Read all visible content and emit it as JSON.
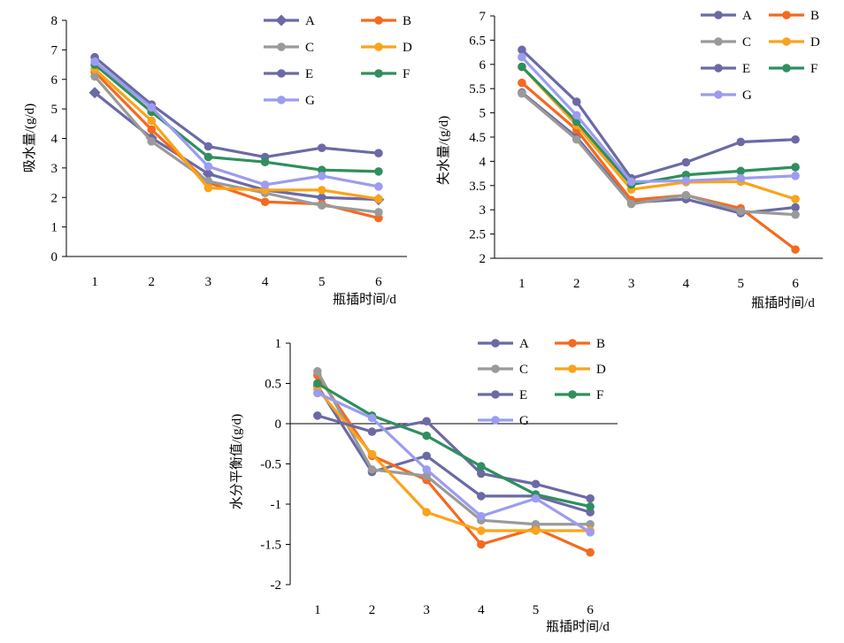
{
  "chart_data": [
    {
      "type": "line",
      "title": "",
      "xlabel": "瓶插时间/d",
      "ylabel": "吸水量/(g/d)",
      "x": [
        1,
        2,
        3,
        4,
        5,
        6
      ],
      "ylim": [
        0,
        8
      ],
      "yticks": [
        "0",
        "1",
        "2",
        "3",
        "4",
        "5",
        "6",
        "7",
        "8"
      ],
      "grid": false,
      "legend": "top-right",
      "series": [
        {
          "name": "A",
          "color": "#6b6aa5",
          "marker": "diamond",
          "values": [
            5.55,
            4.02,
            2.8,
            2.25,
            2.0,
            1.93
          ]
        },
        {
          "name": "B",
          "color": "#f46a1f",
          "marker": "circle",
          "values": [
            6.25,
            4.3,
            2.5,
            1.85,
            1.78,
            1.3
          ]
        },
        {
          "name": "C",
          "color": "#9a9a9a",
          "marker": "circle",
          "values": [
            6.1,
            3.9,
            2.55,
            2.15,
            1.73,
            1.5
          ]
        },
        {
          "name": "D",
          "color": "#fba31a",
          "marker": "circle",
          "values": [
            6.35,
            4.6,
            2.32,
            2.25,
            2.25,
            1.95
          ]
        },
        {
          "name": "E",
          "color": "#6b6aa5",
          "marker": "circle",
          "values": [
            6.75,
            5.15,
            3.73,
            3.37,
            3.68,
            3.5
          ]
        },
        {
          "name": "F",
          "color": "#2f8f5e",
          "marker": "circle",
          "values": [
            6.5,
            4.9,
            3.37,
            3.2,
            2.93,
            2.88
          ]
        },
        {
          "name": "G",
          "color": "#9c9cf0",
          "marker": "circle",
          "values": [
            6.6,
            5.05,
            3.05,
            2.43,
            2.73,
            2.37
          ]
        }
      ]
    },
    {
      "type": "line",
      "title": "",
      "xlabel": "瓶插时间/d",
      "ylabel": "失水量/(g/d)",
      "x": [
        1,
        2,
        3,
        4,
        5,
        6
      ],
      "ylim": [
        2,
        7
      ],
      "yticks": [
        "2",
        "2.5",
        "3",
        "3.5",
        "4",
        "4.5",
        "5",
        "5.5",
        "6",
        "6.5",
        "7"
      ],
      "grid": false,
      "legend": "top-right",
      "series": [
        {
          "name": "A",
          "color": "#6b6aa5",
          "marker": "circle",
          "values": [
            5.42,
            4.5,
            3.15,
            3.22,
            2.93,
            3.05
          ]
        },
        {
          "name": "B",
          "color": "#f46a1f",
          "marker": "circle",
          "values": [
            5.62,
            4.65,
            3.2,
            3.3,
            3.03,
            2.18
          ]
        },
        {
          "name": "C",
          "color": "#9a9a9a",
          "marker": "circle",
          "values": [
            5.4,
            4.45,
            3.12,
            3.3,
            2.97,
            2.9
          ]
        },
        {
          "name": "D",
          "color": "#fba31a",
          "marker": "circle",
          "values": [
            5.95,
            4.75,
            3.42,
            3.57,
            3.58,
            3.22
          ]
        },
        {
          "name": "E",
          "color": "#6b6aa5",
          "marker": "circle",
          "values": [
            6.3,
            5.23,
            3.65,
            3.98,
            4.4,
            4.45
          ]
        },
        {
          "name": "F",
          "color": "#2f8f5e",
          "marker": "circle",
          "values": [
            5.95,
            4.82,
            3.52,
            3.72,
            3.8,
            3.88
          ]
        },
        {
          "name": "G",
          "color": "#9c9cf0",
          "marker": "circle",
          "values": [
            6.15,
            4.95,
            3.58,
            3.6,
            3.65,
            3.7
          ]
        }
      ]
    },
    {
      "type": "line",
      "title": "",
      "xlabel": "瓶插时间/d",
      "ylabel": "水分平衡值/(g/d)",
      "x": [
        1,
        2,
        3,
        4,
        5,
        6
      ],
      "ylim": [
        -2,
        1
      ],
      "yticks": [
        "-2",
        "-1.5",
        "-1",
        "-0.5",
        "0",
        "0.5",
        "1"
      ],
      "grid": false,
      "legend": "top-right",
      "series": [
        {
          "name": "A",
          "color": "#6b6aa5",
          "marker": "circle",
          "values": [
            0.47,
            -0.6,
            -0.4,
            -0.9,
            -0.9,
            -1.1
          ]
        },
        {
          "name": "B",
          "color": "#f46a1f",
          "marker": "circle",
          "values": [
            0.6,
            -0.4,
            -0.7,
            -1.5,
            -1.3,
            -1.6
          ]
        },
        {
          "name": "C",
          "color": "#9a9a9a",
          "marker": "circle",
          "values": [
            0.65,
            -0.57,
            -0.65,
            -1.2,
            -1.25,
            -1.25
          ]
        },
        {
          "name": "D",
          "color": "#fba31a",
          "marker": "circle",
          "values": [
            0.43,
            -0.38,
            -1.1,
            -1.33,
            -1.33,
            -1.33
          ]
        },
        {
          "name": "E",
          "color": "#6b6aa5",
          "marker": "circle",
          "values": [
            0.1,
            -0.1,
            0.03,
            -0.62,
            -0.75,
            -0.93
          ]
        },
        {
          "name": "F",
          "color": "#2f8f5e",
          "marker": "circle",
          "values": [
            0.5,
            0.1,
            -0.15,
            -0.53,
            -0.88,
            -1.03
          ]
        },
        {
          "name": "G",
          "color": "#9c9cf0",
          "marker": "circle",
          "values": [
            0.38,
            0.07,
            -0.57,
            -1.15,
            -0.93,
            -1.35
          ]
        }
      ]
    }
  ]
}
